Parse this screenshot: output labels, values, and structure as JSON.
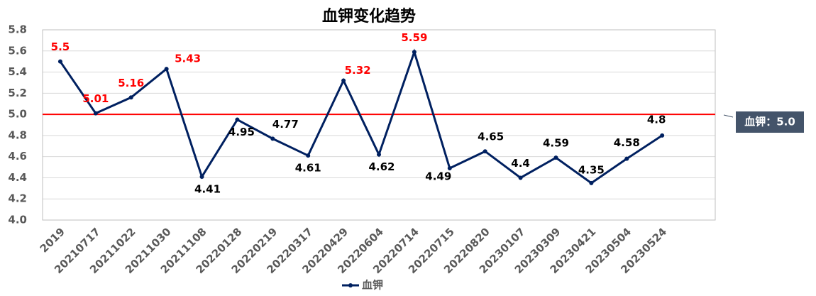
{
  "chart_data": {
    "type": "line",
    "title": "血钾变化趋势",
    "categories": [
      "2019",
      "20210717",
      "20211022",
      "20211030",
      "20211108",
      "20220128",
      "20220219",
      "20220317",
      "20220429",
      "20220604",
      "20220714",
      "20220715",
      "20220820",
      "20230107",
      "20230309",
      "20230421",
      "20230504",
      "20230524"
    ],
    "series": [
      {
        "name": "血钾",
        "color": "#002060",
        "values": [
          5.5,
          5.01,
          5.16,
          5.43,
          4.41,
          4.95,
          4.77,
          4.61,
          5.32,
          4.62,
          5.59,
          4.49,
          4.65,
          4.4,
          4.59,
          4.35,
          4.58,
          4.8
        ]
      }
    ],
    "ylim": [
      4.0,
      5.8
    ],
    "yticks": [
      {
        "value": 4.0,
        "label": "4.0"
      },
      4.2,
      4.4,
      4.6,
      4.8,
      {
        "value": 5.0,
        "label": "5.0"
      },
      5.2,
      5.4,
      5.6,
      5.8
    ],
    "grid": true,
    "reference_line": {
      "value": 5.0,
      "label": "血钾：5.0",
      "color": "#ff0000"
    },
    "label_color_above": "#ff0000",
    "label_color_below": "#000000",
    "legend": "bottom"
  }
}
